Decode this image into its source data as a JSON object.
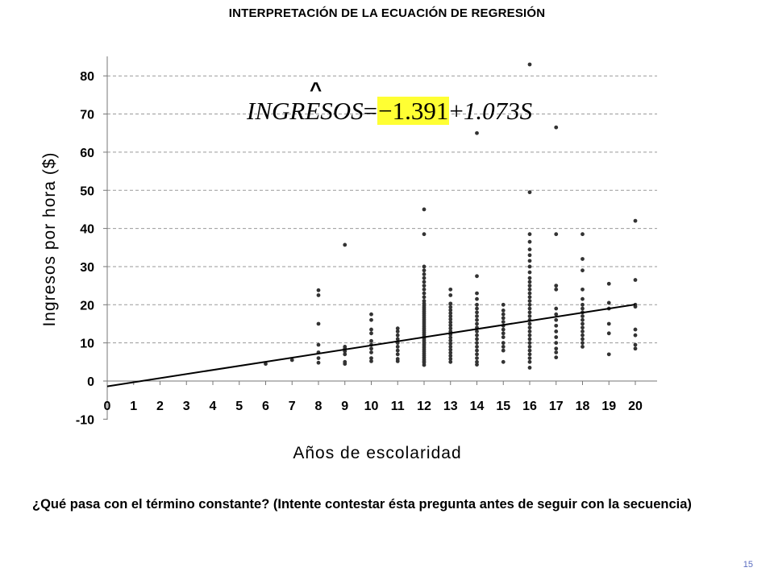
{
  "slide": {
    "title": "INTERPRETACIÓN DE LA ECUACIÓN DE REGRESIÓN",
    "question": "¿Qué pasa con el término constante? (Intente contestar ésta pregunta antes de seguir con la secuencia)",
    "page_number": "15"
  },
  "equation": {
    "hat": "^",
    "lhs": "INGRESOS",
    "equals": "=",
    "intercept": "−1.391",
    "plus": "+",
    "slope_term": "1.073S",
    "highlight_color": "#ffff33"
  },
  "chart_data": {
    "type": "scatter",
    "xlabel": "Años de escolaridad",
    "ylabel": "Ingresos por hora ($)",
    "xlim": [
      0,
      20.7
    ],
    "ylim": [
      -10,
      85
    ],
    "x_ticks": [
      "0",
      "1",
      "2",
      "3",
      "4",
      "5",
      "6",
      "7",
      "8",
      "9",
      "10",
      "11",
      "12",
      "13",
      "14",
      "15",
      "16",
      "17",
      "18",
      "19",
      "20"
    ],
    "y_ticks": [
      "-10",
      "0",
      "10",
      "20",
      "30",
      "40",
      "50",
      "60",
      "70",
      "80"
    ],
    "grid": "horizontal dashed",
    "regression_line": {
      "intercept": -1.391,
      "slope": 1.073,
      "x_range": [
        0,
        20
      ]
    },
    "series": [
      {
        "color": "#333333",
        "points": [
          [
            6,
            4.5
          ],
          [
            7,
            5.5
          ],
          [
            8,
            4.8
          ],
          [
            8,
            6.0
          ],
          [
            8,
            7.5
          ],
          [
            8,
            9.5
          ],
          [
            8,
            15
          ],
          [
            8,
            22.5
          ],
          [
            8,
            23.8
          ],
          [
            9,
            4.5
          ],
          [
            9,
            5.0
          ],
          [
            9,
            7.0
          ],
          [
            9,
            7.8
          ],
          [
            9,
            8.5
          ],
          [
            9,
            9.0
          ],
          [
            9,
            35.7
          ],
          [
            10,
            5.2
          ],
          [
            10,
            6.0
          ],
          [
            10,
            7.5
          ],
          [
            10,
            8.5
          ],
          [
            10,
            9.5
          ],
          [
            10,
            10.5
          ],
          [
            10,
            12.5
          ],
          [
            10,
            13.5
          ],
          [
            10,
            16
          ],
          [
            10,
            17.5
          ],
          [
            11,
            5.2
          ],
          [
            11,
            5.8
          ],
          [
            11,
            7.0
          ],
          [
            11,
            8.0
          ],
          [
            11,
            9.0
          ],
          [
            11,
            10.0
          ],
          [
            11,
            11.0
          ],
          [
            11,
            12.0
          ],
          [
            11,
            13.0
          ],
          [
            11,
            13.8
          ],
          [
            12,
            4.2
          ],
          [
            12,
            4.8
          ],
          [
            12,
            5.2
          ],
          [
            12,
            5.7
          ],
          [
            12,
            6.2
          ],
          [
            12,
            6.7
          ],
          [
            12,
            7.2
          ],
          [
            12,
            7.7
          ],
          [
            12,
            8.2
          ],
          [
            12,
            8.7
          ],
          [
            12,
            9.2
          ],
          [
            12,
            9.7
          ],
          [
            12,
            10.2
          ],
          [
            12,
            10.7
          ],
          [
            12,
            11.2
          ],
          [
            12,
            11.7
          ],
          [
            12,
            12.2
          ],
          [
            12,
            12.7
          ],
          [
            12,
            13.2
          ],
          [
            12,
            13.7
          ],
          [
            12,
            14.2
          ],
          [
            12,
            14.7
          ],
          [
            12,
            15.2
          ],
          [
            12,
            15.7
          ],
          [
            12,
            16.2
          ],
          [
            12,
            16.7
          ],
          [
            12,
            17.2
          ],
          [
            12,
            17.7
          ],
          [
            12,
            18.2
          ],
          [
            12,
            18.7
          ],
          [
            12,
            19.2
          ],
          [
            12,
            19.7
          ],
          [
            12,
            20.3
          ],
          [
            12,
            21.0
          ],
          [
            12,
            22.0
          ],
          [
            12,
            23.0
          ],
          [
            12,
            24.0
          ],
          [
            12,
            25.0
          ],
          [
            12,
            26.0
          ],
          [
            12,
            27.0
          ],
          [
            12,
            28.0
          ],
          [
            12,
            29.0
          ],
          [
            12,
            30.0
          ],
          [
            12,
            38.5
          ],
          [
            12,
            45.0
          ],
          [
            13,
            5.0
          ],
          [
            13,
            5.8
          ],
          [
            13,
            6.6
          ],
          [
            13,
            7.4
          ],
          [
            13,
            8.2
          ],
          [
            13,
            9.0
          ],
          [
            13,
            9.8
          ],
          [
            13,
            10.6
          ],
          [
            13,
            11.4
          ],
          [
            13,
            12.2
          ],
          [
            13,
            13.0
          ],
          [
            13,
            13.8
          ],
          [
            13,
            14.6
          ],
          [
            13,
            15.4
          ],
          [
            13,
            16.2
          ],
          [
            13,
            17.0
          ],
          [
            13,
            17.8
          ],
          [
            13,
            18.6
          ],
          [
            13,
            19.4
          ],
          [
            13,
            20.3
          ],
          [
            13,
            22.5
          ],
          [
            13,
            24.0
          ],
          [
            14,
            4.3
          ],
          [
            14,
            5.0
          ],
          [
            14,
            6.0
          ],
          [
            14,
            7.0
          ],
          [
            14,
            8.0
          ],
          [
            14,
            9.0
          ],
          [
            14,
            10.0
          ],
          [
            14,
            11.0
          ],
          [
            14,
            12.0
          ],
          [
            14,
            13.0
          ],
          [
            14,
            14.0
          ],
          [
            14,
            15.0
          ],
          [
            14,
            16.0
          ],
          [
            14,
            17.0
          ],
          [
            14,
            18.0
          ],
          [
            14,
            19.0
          ],
          [
            14,
            20.0
          ],
          [
            14,
            21.5
          ],
          [
            14,
            23.0
          ],
          [
            14,
            27.5
          ],
          [
            14,
            65.0
          ],
          [
            15,
            5.0
          ],
          [
            15,
            8.0
          ],
          [
            15,
            9.0
          ],
          [
            15,
            10.0
          ],
          [
            15,
            11.5
          ],
          [
            15,
            12.5
          ],
          [
            15,
            13.5
          ],
          [
            15,
            14.5
          ],
          [
            15,
            15.5
          ],
          [
            15,
            16.5
          ],
          [
            15,
            17.5
          ],
          [
            15,
            18.5
          ],
          [
            15,
            20.0
          ],
          [
            16,
            3.5
          ],
          [
            16,
            5.0
          ],
          [
            16,
            6.0
          ],
          [
            16,
            7.0
          ],
          [
            16,
            8.0
          ],
          [
            16,
            9.0
          ],
          [
            16,
            10.0
          ],
          [
            16,
            11.0
          ],
          [
            16,
            12.0
          ],
          [
            16,
            13.0
          ],
          [
            16,
            14.0
          ],
          [
            16,
            15.0
          ],
          [
            16,
            16.0
          ],
          [
            16,
            17.0
          ],
          [
            16,
            18.0
          ],
          [
            16,
            19.0
          ],
          [
            16,
            20.0
          ],
          [
            16,
            21.0
          ],
          [
            16,
            22.0
          ],
          [
            16,
            23.0
          ],
          [
            16,
            24.0
          ],
          [
            16,
            25.0
          ],
          [
            16,
            26.0
          ],
          [
            16,
            27.0
          ],
          [
            16,
            28.5
          ],
          [
            16,
            30.0
          ],
          [
            16,
            31.5
          ],
          [
            16,
            33.0
          ],
          [
            16,
            34.5
          ],
          [
            16,
            36.5
          ],
          [
            16,
            38.5
          ],
          [
            16,
            49.5
          ],
          [
            16,
            83.0
          ],
          [
            17,
            6.2
          ],
          [
            17,
            7.5
          ],
          [
            17,
            8.5
          ],
          [
            17,
            10.0
          ],
          [
            17,
            11.5
          ],
          [
            17,
            13.0
          ],
          [
            17,
            14.5
          ],
          [
            17,
            16.0
          ],
          [
            17,
            17.5
          ],
          [
            17,
            19.0
          ],
          [
            17,
            24.0
          ],
          [
            17,
            25.0
          ],
          [
            17,
            38.5
          ],
          [
            17,
            66.5
          ],
          [
            18,
            9.0
          ],
          [
            18,
            10.0
          ],
          [
            18,
            11.0
          ],
          [
            18,
            12.0
          ],
          [
            18,
            13.0
          ],
          [
            18,
            14.0
          ],
          [
            18,
            15.0
          ],
          [
            18,
            16.0
          ],
          [
            18,
            17.0
          ],
          [
            18,
            18.0
          ],
          [
            18,
            19.0
          ],
          [
            18,
            20.0
          ],
          [
            18,
            21.5
          ],
          [
            18,
            24.0
          ],
          [
            18,
            29.0
          ],
          [
            18,
            32.0
          ],
          [
            18,
            38.5
          ],
          [
            19,
            7.0
          ],
          [
            19,
            12.5
          ],
          [
            19,
            15.0
          ],
          [
            19,
            19.0
          ],
          [
            19,
            20.5
          ],
          [
            19,
            25.5
          ],
          [
            20,
            8.5
          ],
          [
            20,
            9.5
          ],
          [
            20,
            12.0
          ],
          [
            20,
            13.5
          ],
          [
            20,
            19.5
          ],
          [
            20,
            20.0
          ],
          [
            20,
            26.5
          ],
          [
            20,
            42.0
          ]
        ]
      }
    ]
  }
}
